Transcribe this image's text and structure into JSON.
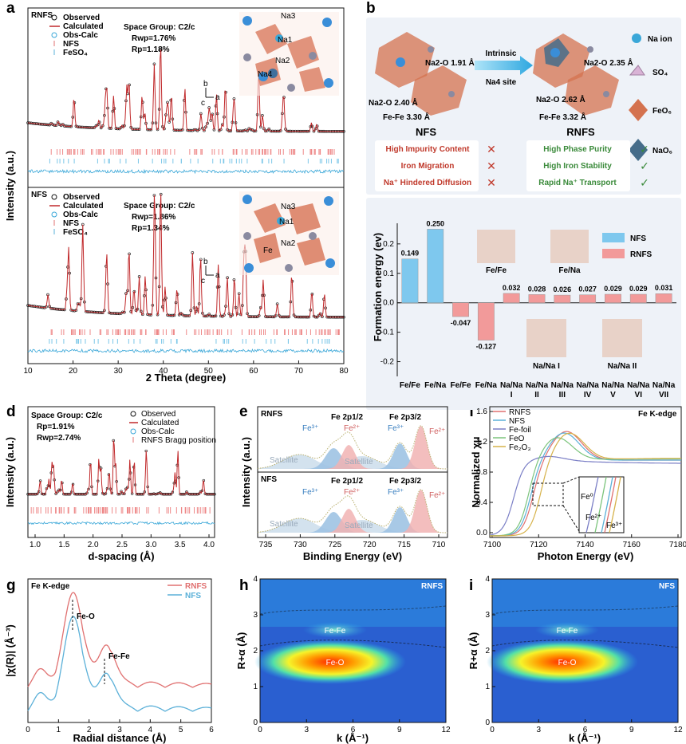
{
  "figure": {
    "panel_labels": [
      "a",
      "b",
      "c",
      "d",
      "e",
      "f",
      "g",
      "h",
      "i"
    ]
  },
  "panel_a": {
    "top": {
      "title": "RNFS",
      "legend": [
        "Observed",
        "Calculated",
        "Obs-Calc",
        "NFS",
        "FeSO₄"
      ],
      "space_group": "Space Group: C2/c",
      "rwp": "Rwp=1.76%",
      "rp": "Rp=1.18%",
      "sites": [
        "Na3",
        "Na1",
        "Na2",
        "Na4"
      ],
      "axes": [
        "b",
        "c",
        "a"
      ]
    },
    "bottom": {
      "title": "NFS",
      "legend": [
        "Observed",
        "Calculated",
        "Obs-Calc",
        "NFS",
        "FeSO₄"
      ],
      "space_group": "Space Group: C2/c",
      "rwp": "Rwp=1.86%",
      "rp": "Rp=1.34%",
      "sites": [
        "Na3",
        "Na1",
        "Fe",
        "Na2"
      ],
      "axes": [
        "b",
        "c",
        "a"
      ]
    },
    "ylabel": "Intensity (a.u.)",
    "xlabel": "2 Theta (degree)",
    "xticks": [
      "10",
      "20",
      "30",
      "40",
      "50",
      "60",
      "70",
      "80"
    ]
  },
  "panel_b": {
    "left_title": "NFS",
    "right_title": "RNFS",
    "arrow_label_1": "Intrinsic",
    "arrow_label_2": "Na4 site",
    "left_labels": [
      "Na2-O 1.91 Å",
      "Na2-O 2.40 Å",
      "Fe-Fe 3.30 Å"
    ],
    "right_labels": [
      "Na2-O 2.35 Å",
      "Na2-O 2.62 Å",
      "Fe-Fe 3.32 Å"
    ],
    "legend": [
      "Na ion",
      "SO₄",
      "FeO₆",
      "NaO₆"
    ],
    "bad": [
      "High Impurity Content",
      "Iron Migration",
      "Na⁺ Hindered Diffusion"
    ],
    "good": [
      "High Phase Purity",
      "High Iron Stability",
      "Rapid Na⁺ Transport"
    ],
    "bad_color": "#c0392b",
    "good_color": "#3a8a3a"
  },
  "panel_c": {
    "chart_data": {
      "type": "bar",
      "ylabel": "Formation energy (ev)",
      "ylim": [
        -0.25,
        0.27
      ],
      "yticks": [
        "0.2",
        "0.1",
        "0.0",
        "-0.1",
        "-0.2"
      ],
      "categories": [
        "Fe/Fe",
        "Fe/Na",
        "Fe/Fe",
        "Fe/Na",
        "Na/Na I",
        "Na/Na II",
        "Na/Na III",
        "Na/Na IV",
        "Na/Na V",
        "Na/Na VI",
        "Na/Na VII"
      ],
      "cat_line1": [
        "Fe/Fe",
        "Fe/Na",
        "Fe/Fe",
        "Fe/Na",
        "Na/Na",
        "Na/Na",
        "Na/Na",
        "Na/Na",
        "Na/Na",
        "Na/Na",
        "Na/Na"
      ],
      "cat_line2": [
        "",
        "",
        "",
        "",
        "I",
        "II",
        "III",
        "IV",
        "V",
        "VI",
        "VII"
      ],
      "series": [
        {
          "name": "NFS",
          "color": "#7ec8ee",
          "values": [
            0.149,
            0.25,
            null,
            null,
            null,
            null,
            null,
            null,
            null,
            null,
            null
          ]
        },
        {
          "name": "RNFS",
          "color": "#f29a9a",
          "values": [
            null,
            null,
            -0.047,
            -0.127,
            0.032,
            0.028,
            0.026,
            0.027,
            0.029,
            0.029,
            0.031
          ]
        }
      ],
      "value_labels": [
        "0.149",
        "0.250",
        "-0.047",
        "-0.127",
        "0.032",
        "0.028",
        "0.026",
        "0.027",
        "0.029",
        "0.029",
        "0.031"
      ],
      "insets": [
        "Fe/Fe",
        "Fe/Na",
        "Na/Na I",
        "Na/Na II"
      ]
    }
  },
  "panel_d": {
    "space_group": "Space Group: C2/c",
    "rp": "Rp=1.91%",
    "rwp": "Rwp=2.74%",
    "legend": [
      "Observed",
      "Calculated",
      "Obs-Calc",
      "RNFS Bragg position"
    ],
    "ylabel": "Intensity (a.u.)",
    "xlabel": "d-spacing (Å)",
    "xticks": [
      "1.0",
      "1.5",
      "2.0",
      "2.5",
      "3.0",
      "3.5",
      "4.0"
    ]
  },
  "panel_e": {
    "top_title": "RNFS",
    "bottom_title": "NFS",
    "peak_labels": [
      "Fe 2p1/2",
      "Fe 2p3/2"
    ],
    "species": [
      "Fe³⁺",
      "Fe²⁺",
      "Fe³⁺",
      "Fe²⁺"
    ],
    "satellite": "Satellite",
    "ylabel": "Intensity (a.u.)",
    "xlabel": "Binding Energy (eV)",
    "xticks": [
      "735",
      "730",
      "725",
      "720",
      "715",
      "710"
    ]
  },
  "panel_f": {
    "title": "Fe K-edge",
    "legend": [
      "RNFS",
      "NFS",
      "Fe-foil",
      "FeO",
      "Fe₂O₃"
    ],
    "colors": [
      "#e07070",
      "#5bb0d8",
      "#7b7fc6",
      "#7cc47c",
      "#d6b24a"
    ],
    "inset_labels": [
      "Fe⁰",
      "Fe²⁺",
      "Fe³⁺"
    ],
    "ylabel": "Normalized χμ",
    "xlabel": "Photon Energy (eV)",
    "xticks": [
      "7100",
      "7120",
      "7140",
      "7160",
      "7180"
    ],
    "yticks": [
      "1.6",
      "1.2",
      "0.8",
      "0.4",
      "0.0"
    ]
  },
  "panel_g": {
    "title": "Fe K-edge",
    "legend": [
      "RNFS",
      "NFS"
    ],
    "peak_labels": [
      "Fe-O",
      "Fe-Fe"
    ],
    "ylabel": "|χ(R)| (Å⁻³)",
    "xlabel": "Radial distance (Å)",
    "xticks": [
      "0",
      "1",
      "2",
      "3",
      "4",
      "5",
      "6"
    ]
  },
  "panel_h": {
    "title": "RNFS",
    "labels": [
      "Fe-Fe",
      "Fe-O"
    ],
    "ylabel": "R+α (Å)",
    "xlabel": "k (Å⁻¹)",
    "xticks": [
      "0",
      "3",
      "6",
      "9",
      "12"
    ],
    "yticks": [
      "4",
      "3",
      "2",
      "1",
      "0"
    ]
  },
  "panel_i": {
    "title": "NFS",
    "labels": [
      "Fe-Fe",
      "Fe-O"
    ],
    "ylabel": "R+α (Å)",
    "xlabel": "k (Å⁻¹)",
    "xticks": [
      "0",
      "3",
      "6",
      "9",
      "12"
    ],
    "yticks": [
      "4",
      "3",
      "2",
      "1",
      "0"
    ]
  }
}
